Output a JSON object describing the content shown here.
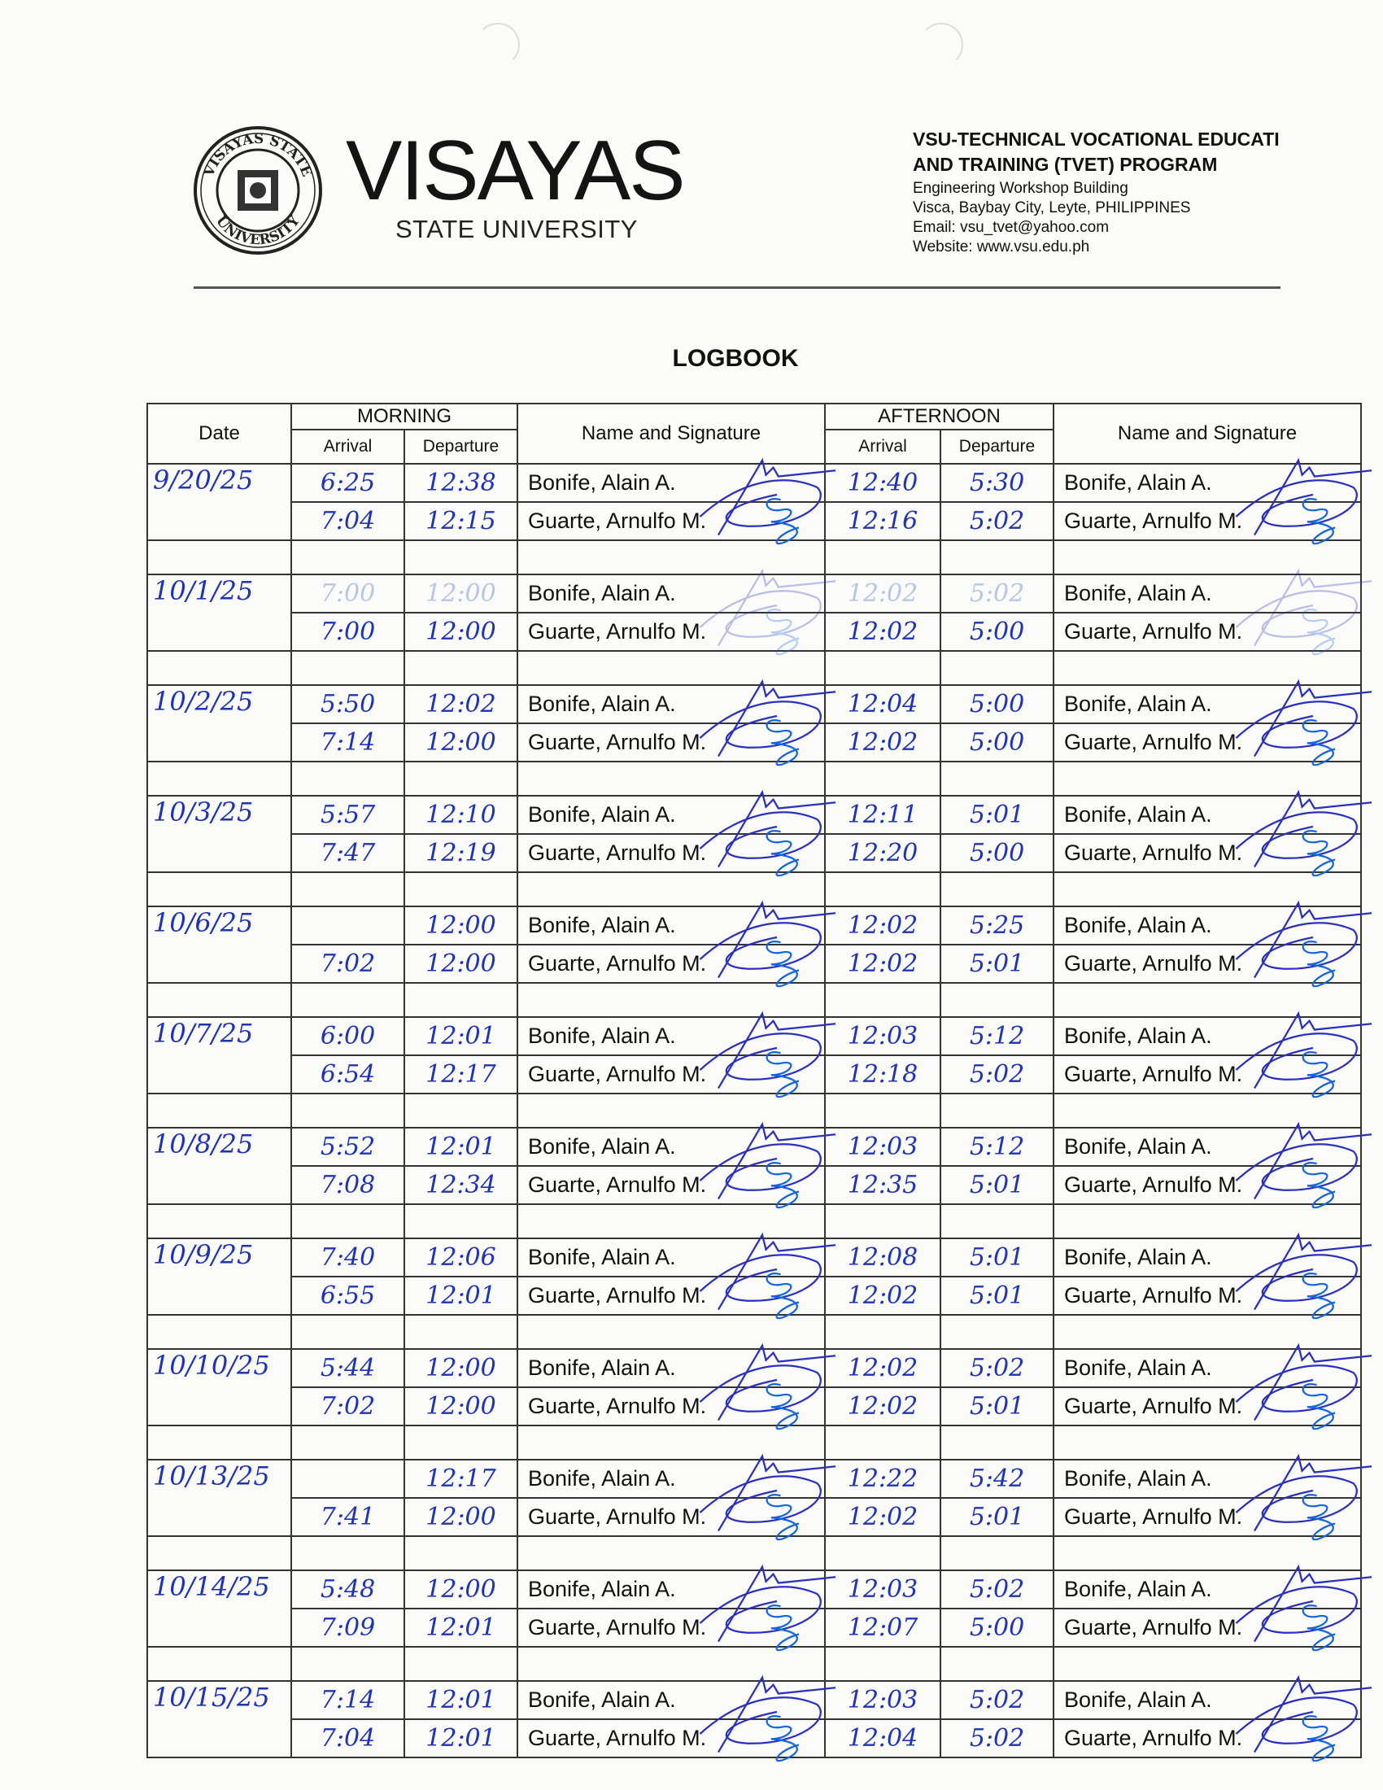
{
  "header": {
    "university_name": "VISAYAS",
    "university_sub": "STATE UNIVERSITY",
    "seal_text": "VISAYAS STATE UNIVERSITY",
    "office_title_line1": "VSU-TECHNICAL VOCATIONAL EDUCATI",
    "office_title_line2": "AND TRAINING (TVET) PROGRAM",
    "building": "Engineering Workshop Building",
    "address": "Visca, Baybay City, Leyte, PHILIPPINES",
    "email": "Email: vsu_tvet@yahoo.com",
    "website": "Website: www.vsu.edu.ph"
  },
  "title": "LOGBOOK",
  "table": {
    "col_date": "Date",
    "col_morning": "MORNING",
    "col_afternoon": "AFTERNOON",
    "col_arrival": "Arrival",
    "col_departure": "Departure",
    "col_name_signature": "Name and Signature"
  },
  "ink_color": "#1e33b8",
  "entries": [
    {
      "date": "9/20/25",
      "people": [
        {
          "name": "Bonife, Alain A.",
          "am_arrival": "6:25",
          "am_departure": "12:38",
          "pm_arrival": "12:40",
          "pm_departure": "5:30"
        },
        {
          "name": "Guarte, Arnulfo M.",
          "am_arrival": "7:04",
          "am_departure": "12:15",
          "pm_arrival": "12:16",
          "pm_departure": "5:02"
        }
      ]
    },
    {
      "date": "10/1/25",
      "faint_first": true,
      "people": [
        {
          "name": "Bonife, Alain A.",
          "am_arrival": "7:00",
          "am_departure": "12:00",
          "pm_arrival": "12:02",
          "pm_departure": "5:02"
        },
        {
          "name": "Guarte, Arnulfo M.",
          "am_arrival": "7:00",
          "am_departure": "12:00",
          "pm_arrival": "12:02",
          "pm_departure": "5:00"
        }
      ]
    },
    {
      "date": "10/2/25",
      "people": [
        {
          "name": "Bonife, Alain A.",
          "am_arrival": "5:50",
          "am_departure": "12:02",
          "pm_arrival": "12:04",
          "pm_departure": "5:00"
        },
        {
          "name": "Guarte, Arnulfo M.",
          "am_arrival": "7:14",
          "am_departure": "12:00",
          "pm_arrival": "12:02",
          "pm_departure": "5:00"
        }
      ]
    },
    {
      "date": "10/3/25",
      "people": [
        {
          "name": "Bonife, Alain A.",
          "am_arrival": "5:57",
          "am_departure": "12:10",
          "pm_arrival": "12:11",
          "pm_departure": "5:01"
        },
        {
          "name": "Guarte, Arnulfo M.",
          "am_arrival": "7:47",
          "am_departure": "12:19",
          "pm_arrival": "12:20",
          "pm_departure": "5:00"
        }
      ]
    },
    {
      "date": "10/6/25",
      "people": [
        {
          "name": "Bonife, Alain A.",
          "am_arrival": "",
          "am_departure": "12:00",
          "pm_arrival": "12:02",
          "pm_departure": "5:25"
        },
        {
          "name": "Guarte, Arnulfo M.",
          "am_arrival": "7:02",
          "am_departure": "12:00",
          "pm_arrival": "12:02",
          "pm_departure": "5:01"
        }
      ]
    },
    {
      "date": "10/7/25",
      "people": [
        {
          "name": "Bonife, Alain A.",
          "am_arrival": "6:00",
          "am_departure": "12:01",
          "pm_arrival": "12:03",
          "pm_departure": "5:12"
        },
        {
          "name": "Guarte, Arnulfo M.",
          "am_arrival": "6:54",
          "am_departure": "12:17",
          "pm_arrival": "12:18",
          "pm_departure": "5:02"
        }
      ]
    },
    {
      "date": "10/8/25",
      "people": [
        {
          "name": "Bonife, Alain A.",
          "am_arrival": "5:52",
          "am_departure": "12:01",
          "pm_arrival": "12:03",
          "pm_departure": "5:12"
        },
        {
          "name": "Guarte, Arnulfo M.",
          "am_arrival": "7:08",
          "am_departure": "12:34",
          "pm_arrival": "12:35",
          "pm_departure": "5:01"
        }
      ]
    },
    {
      "date": "10/9/25",
      "people": [
        {
          "name": "Bonife, Alain A.",
          "am_arrival": "7:40",
          "am_departure": "12:06",
          "pm_arrival": "12:08",
          "pm_departure": "5:01"
        },
        {
          "name": "Guarte, Arnulfo M.",
          "am_arrival": "6:55",
          "am_departure": "12:01",
          "pm_arrival": "12:02",
          "pm_departure": "5:01"
        }
      ]
    },
    {
      "date": "10/10/25",
      "people": [
        {
          "name": "Bonife, Alain A.",
          "am_arrival": "5:44",
          "am_departure": "12:00",
          "pm_arrival": "12:02",
          "pm_departure": "5:02"
        },
        {
          "name": "Guarte, Arnulfo M.",
          "am_arrival": "7:02",
          "am_departure": "12:00",
          "pm_arrival": "12:02",
          "pm_departure": "5:01"
        }
      ]
    },
    {
      "date": "10/13/25",
      "people": [
        {
          "name": "Bonife, Alain A.",
          "am_arrival": "",
          "am_departure": "12:17",
          "pm_arrival": "12:22",
          "pm_departure": "5:42"
        },
        {
          "name": "Guarte, Arnulfo M.",
          "am_arrival": "7:41",
          "am_departure": "12:00",
          "pm_arrival": "12:02",
          "pm_departure": "5:01"
        }
      ]
    },
    {
      "date": "10/14/25",
      "people": [
        {
          "name": "Bonife, Alain A.",
          "am_arrival": "5:48",
          "am_departure": "12:00",
          "pm_arrival": "12:03",
          "pm_departure": "5:02"
        },
        {
          "name": "Guarte, Arnulfo M.",
          "am_arrival": "7:09",
          "am_departure": "12:01",
          "pm_arrival": "12:07",
          "pm_departure": "5:00"
        }
      ]
    },
    {
      "date": "10/15/25",
      "people": [
        {
          "name": "Bonife, Alain A.",
          "am_arrival": "7:14",
          "am_departure": "12:01",
          "pm_arrival": "12:03",
          "pm_departure": "5:02"
        },
        {
          "name": "Guarte, Arnulfo M.",
          "am_arrival": "7:04",
          "am_departure": "12:01",
          "pm_arrival": "12:04",
          "pm_departure": "5:02"
        }
      ]
    }
  ]
}
